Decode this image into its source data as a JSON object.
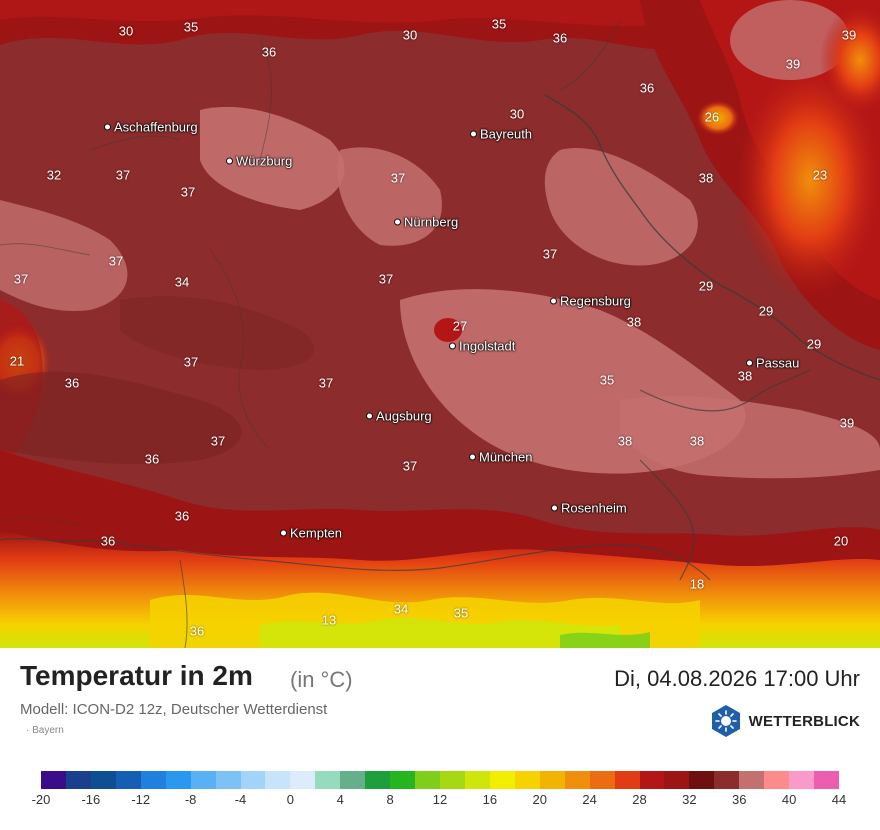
{
  "legend": {
    "title": "Temperatur in 2m",
    "unit": "(in °C)",
    "datetime": "Di, 04.08.2026 17:00 Uhr",
    "model": "Modell: ICON-D2 12z, Deutscher Wetterdienst",
    "region": "· Bayern",
    "brand": "WETTERBLICK",
    "colors": [
      "#3a0d8a",
      "#1a3f8f",
      "#0e4f93",
      "#145fb3",
      "#1f80e0",
      "#2b98f0",
      "#5ab0f5",
      "#7cc2f7",
      "#a3d4f8",
      "#c8e4fb",
      "#dcecfc",
      "#97dbbf",
      "#65b08a",
      "#1f9e3c",
      "#24b51f",
      "#7fcf1a",
      "#a5d911",
      "#cfe60a",
      "#f2ee00",
      "#f6d200",
      "#f2b400",
      "#f08f0b",
      "#ec6c11",
      "#e23c14",
      "#b41616",
      "#9c1414",
      "#6e1010",
      "#8c2c2c",
      "#c47070",
      "#ff8a8a",
      "#f99ac9",
      "#ec5fb0"
    ],
    "ticks": [
      "-20",
      "-16",
      "-12",
      "-8",
      "-4",
      "0",
      "4",
      "8",
      "12",
      "16",
      "20",
      "24",
      "28",
      "32",
      "36",
      "40",
      "44"
    ]
  },
  "map": {
    "cities": [
      {
        "name": "Aschaffenburg"
      },
      {
        "name": "Würzburg"
      },
      {
        "name": "Bayreuth"
      },
      {
        "name": "Nürnberg"
      },
      {
        "name": "Regensburg"
      },
      {
        "name": "Ingolstadt"
      },
      {
        "name": "Passau"
      },
      {
        "name": "Augsburg"
      },
      {
        "name": "München"
      },
      {
        "name": "Rosenheim"
      },
      {
        "name": "Kempten"
      }
    ],
    "values": [
      "35",
      "30",
      "36",
      "35",
      "30",
      "36",
      "39",
      "39",
      "36",
      "30",
      "26",
      "23",
      "32",
      "37",
      "37",
      "37",
      "38",
      "37",
      "37",
      "37",
      "34",
      "37",
      "29",
      "29",
      "38",
      "27",
      "21",
      "36",
      "37",
      "37",
      "35",
      "38",
      "29",
      "38",
      "39",
      "37",
      "38",
      "36",
      "37",
      "36",
      "36",
      "20",
      "36",
      "35",
      "34",
      "13",
      "18"
    ]
  }
}
